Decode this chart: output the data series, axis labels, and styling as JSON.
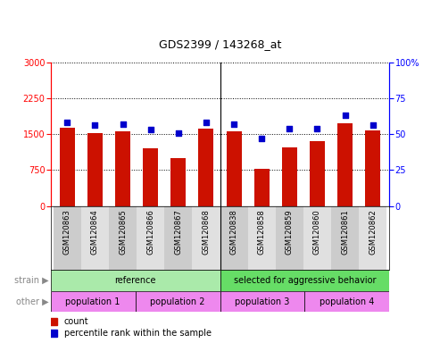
{
  "title": "GDS2399 / 143268_at",
  "samples": [
    "GSM120863",
    "GSM120864",
    "GSM120865",
    "GSM120866",
    "GSM120867",
    "GSM120868",
    "GSM120838",
    "GSM120858",
    "GSM120859",
    "GSM120860",
    "GSM120861",
    "GSM120862"
  ],
  "counts": [
    1630,
    1530,
    1560,
    1200,
    1000,
    1610,
    1560,
    780,
    1220,
    1360,
    1730,
    1580
  ],
  "percentiles": [
    58,
    56,
    57,
    53,
    51,
    58,
    57,
    47,
    54,
    54,
    63,
    56
  ],
  "ylim_left": [
    0,
    3000
  ],
  "ylim_right": [
    0,
    100
  ],
  "yticks_left": [
    0,
    750,
    1500,
    2250,
    3000
  ],
  "yticks_right": [
    0,
    25,
    50,
    75,
    100
  ],
  "bar_color": "#cc1100",
  "dot_color": "#0000cc",
  "strain_groups": [
    {
      "label": "reference",
      "start": 0,
      "end": 6,
      "color": "#aaeaaa"
    },
    {
      "label": "selected for aggressive behavior",
      "start": 6,
      "end": 12,
      "color": "#66dd66"
    }
  ],
  "other_groups": [
    {
      "label": "population 1",
      "start": 0,
      "end": 3
    },
    {
      "label": "population 2",
      "start": 3,
      "end": 6
    },
    {
      "label": "population 3",
      "start": 6,
      "end": 9
    },
    {
      "label": "population 4",
      "start": 9,
      "end": 12
    }
  ],
  "other_color": "#ee88ee",
  "strain_label": "strain",
  "other_label": "other",
  "legend_count": "count",
  "legend_pct": "percentile rank within the sample",
  "bg_color": "#ffffff",
  "title_fontsize": 9,
  "axis_fontsize": 7,
  "label_fontsize": 6,
  "row_fontsize": 7,
  "legend_fontsize": 7
}
